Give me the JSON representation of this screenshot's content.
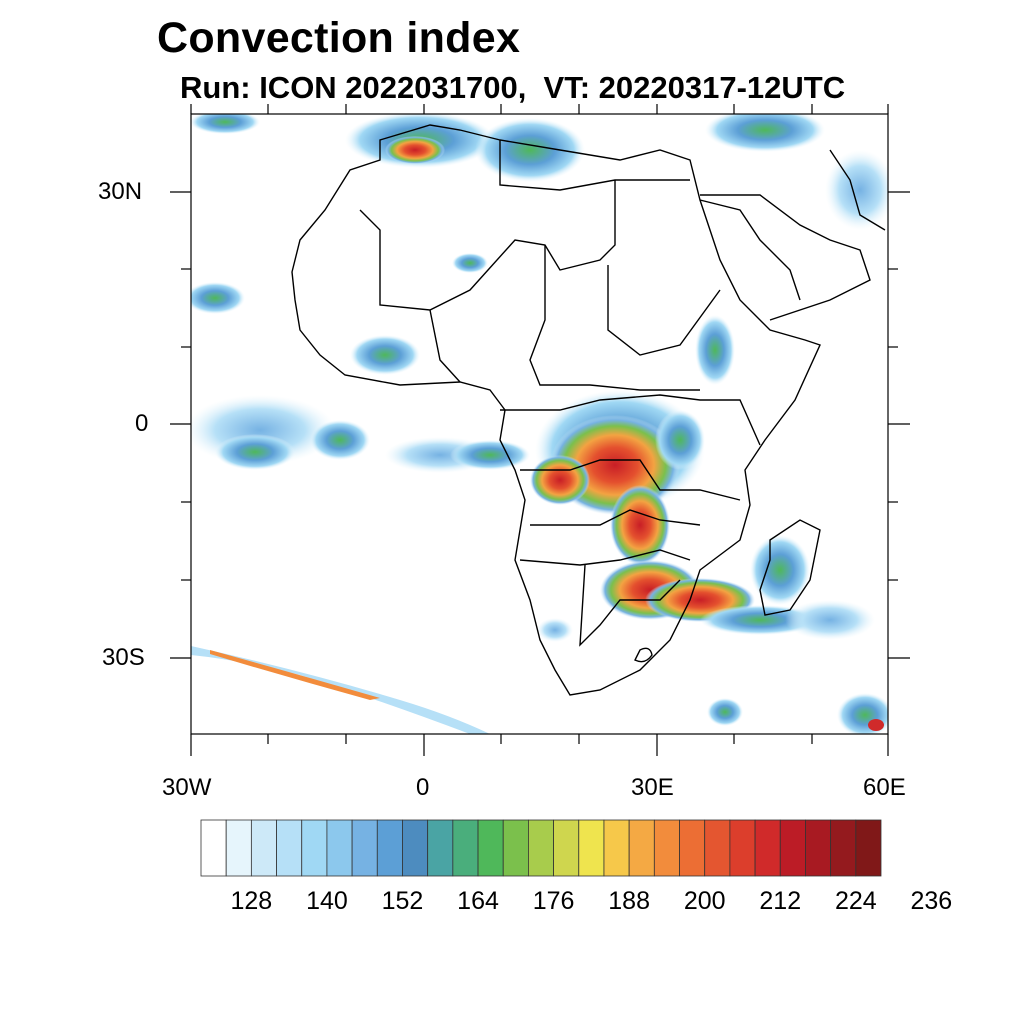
{
  "title": "Convection index",
  "subtitle": "Run: ICON 2022031700,  VT: 20220317-12UTC",
  "y_axis_labels": [
    "30N",
    "0",
    "30S"
  ],
  "x_axis_labels": [
    "30W",
    "0",
    "30E",
    "60E"
  ],
  "colorbar": {
    "labels": [
      "128",
      "140",
      "152",
      "164",
      "176",
      "188",
      "200",
      "212",
      "224",
      "236"
    ],
    "colors": [
      "#ffffff",
      "#e6f5fc",
      "#cde9f8",
      "#b6e0f7",
      "#a0d8f4",
      "#8cc8ed",
      "#76b2e3",
      "#5c9fd6",
      "#4d8cbf",
      "#4aa4a4",
      "#4aae7c",
      "#4fb85a",
      "#7bc04c",
      "#a8cc4c",
      "#cfd64e",
      "#efe44e",
      "#f6c84a",
      "#f4a944",
      "#f28c3c",
      "#ec6e34",
      "#e45630",
      "#dc3e2c",
      "#d02a2a",
      "#bc1c26",
      "#a81a22",
      "#941a1e",
      "#801818"
    ]
  }
}
